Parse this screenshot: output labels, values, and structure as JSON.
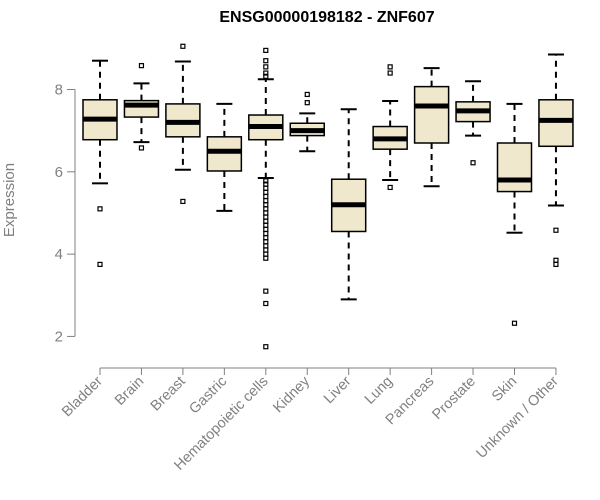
{
  "chart_data": {
    "type": "boxplot",
    "title": "ENSG00000198182 - ZNF607",
    "xlabel": "",
    "ylabel": "Expression",
    "ylim": [
      1.5,
      9.3
    ],
    "yticks": [
      2,
      4,
      6,
      8
    ],
    "colors": {
      "box_fill": "#efe8cd",
      "stroke": "#000000",
      "axis": "#808080"
    },
    "categories": [
      "Bladder",
      "Brain",
      "Breast",
      "Gastric",
      "Hematopoietic cells",
      "Kidney",
      "Liver",
      "Lung",
      "Pancreas",
      "Prostate",
      "Skin",
      "Unknown / Other"
    ],
    "boxes": [
      {
        "name": "Bladder",
        "whisker_low": 5.72,
        "q1": 6.78,
        "median": 7.28,
        "q3": 7.75,
        "whisker_high": 8.7,
        "outliers": [
          5.1,
          3.75
        ]
      },
      {
        "name": "Brain",
        "whisker_low": 6.72,
        "q1": 7.33,
        "median": 7.62,
        "q3": 7.73,
        "whisker_high": 8.15,
        "outliers": [
          8.58,
          6.58
        ]
      },
      {
        "name": "Breast",
        "whisker_low": 6.05,
        "q1": 6.85,
        "median": 7.2,
        "q3": 7.65,
        "whisker_high": 8.68,
        "outliers": [
          9.05,
          5.28
        ]
      },
      {
        "name": "Gastric",
        "whisker_low": 5.05,
        "q1": 6.02,
        "median": 6.5,
        "q3": 6.85,
        "whisker_high": 7.65,
        "outliers": []
      },
      {
        "name": "Hematopoietic cells",
        "whisker_low": 5.85,
        "q1": 6.78,
        "median": 7.1,
        "q3": 7.38,
        "whisker_high": 8.25,
        "outliers": [
          8.95,
          8.7,
          8.55,
          8.4,
          8.32,
          5.78,
          5.7,
          5.6,
          5.5,
          5.4,
          5.3,
          5.2,
          5.1,
          5.0,
          4.9,
          4.8,
          4.7,
          4.6,
          4.5,
          4.4,
          4.3,
          4.2,
          4.1,
          4.0,
          3.9,
          3.1,
          2.8,
          1.75
        ]
      },
      {
        "name": "Kidney",
        "whisker_low": 6.5,
        "q1": 6.88,
        "median": 7.0,
        "q3": 7.18,
        "whisker_high": 7.42,
        "outliers": [
          7.88,
          7.68
        ]
      },
      {
        "name": "Liver",
        "whisker_low": 2.9,
        "q1": 4.55,
        "median": 5.2,
        "q3": 5.82,
        "whisker_high": 7.52,
        "outliers": []
      },
      {
        "name": "Lung",
        "whisker_low": 5.8,
        "q1": 6.55,
        "median": 6.8,
        "q3": 7.1,
        "whisker_high": 7.72,
        "outliers": [
          8.55,
          8.4,
          5.62
        ]
      },
      {
        "name": "Pancreas",
        "whisker_low": 5.65,
        "q1": 6.7,
        "median": 7.6,
        "q3": 8.07,
        "whisker_high": 8.52,
        "outliers": []
      },
      {
        "name": "Prostate",
        "whisker_low": 6.88,
        "q1": 7.22,
        "median": 7.48,
        "q3": 7.7,
        "whisker_high": 8.2,
        "outliers": [
          6.22
        ]
      },
      {
        "name": "Skin",
        "whisker_low": 4.52,
        "q1": 5.52,
        "median": 5.8,
        "q3": 6.7,
        "whisker_high": 7.65,
        "outliers": [
          2.32
        ]
      },
      {
        "name": "Unknown / Other",
        "whisker_low": 5.18,
        "q1": 6.62,
        "median": 7.25,
        "q3": 7.75,
        "whisker_high": 8.85,
        "outliers": [
          4.58,
          3.85,
          3.75
        ]
      }
    ]
  }
}
